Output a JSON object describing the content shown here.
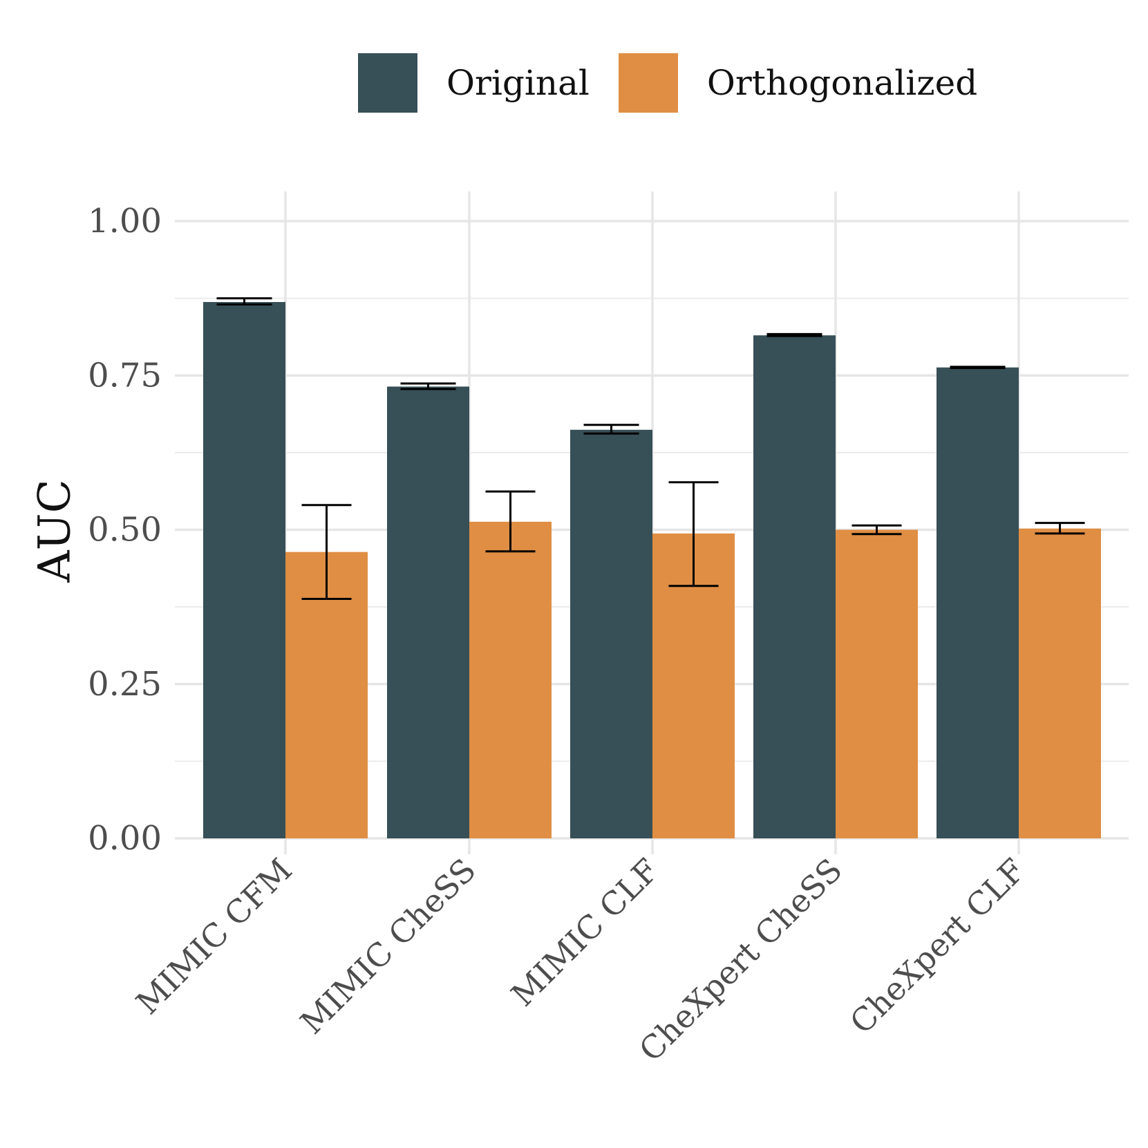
{
  "chart_data": {
    "type": "bar",
    "ylabel": "AUC",
    "xlabel": "",
    "ylim": [
      0,
      1.05
    ],
    "yticks": [
      0.0,
      0.25,
      0.5,
      0.75,
      1.0
    ],
    "ytick_labels": [
      "0.00",
      "0.25",
      "0.50",
      "0.75",
      "1.00"
    ],
    "categories": [
      "MIMIC CFM",
      "MIMIC CheSS",
      "MIMIC CLF",
      "CheXpert CheSS",
      "CheXpert CLF"
    ],
    "series": [
      {
        "name": "Original",
        "color": "#374f56",
        "values": [
          0.869,
          0.732,
          0.662,
          0.815,
          0.763
        ],
        "error_low": [
          0.865,
          0.728,
          0.656,
          0.814,
          0.762
        ],
        "error_high": [
          0.875,
          0.737,
          0.67,
          0.817,
          0.764
        ]
      },
      {
        "name": "Orthogonalized",
        "color": "#df8e44",
        "values": [
          0.464,
          0.513,
          0.494,
          0.5,
          0.502
        ],
        "error_low": [
          0.388,
          0.465,
          0.409,
          0.493,
          0.494
        ],
        "error_high": [
          0.54,
          0.562,
          0.577,
          0.507,
          0.511
        ]
      }
    ],
    "grid": true,
    "legend_position": "top"
  }
}
